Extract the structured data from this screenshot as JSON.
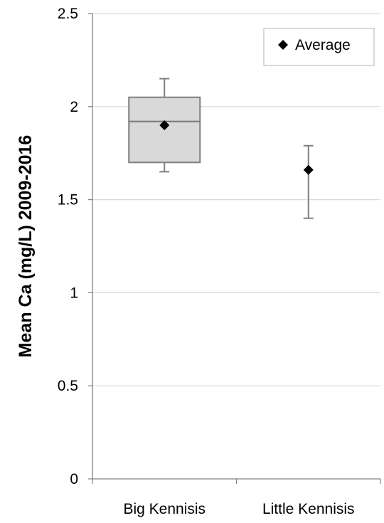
{
  "chart_data": {
    "type": "box",
    "ylabel": "Mean Ca (mg/L)  2009-2016",
    "ylim": [
      0,
      2.5
    ],
    "yticks": [
      "0",
      "0.5",
      "1",
      "1.5",
      "2",
      "2.5"
    ],
    "grid": true,
    "legend_position": "top-right",
    "legend": [
      "Average"
    ],
    "categories": [
      "Big Kennisis",
      "Little Kennisis"
    ],
    "series": [
      {
        "category": "Big Kennisis",
        "min": 1.65,
        "q1": 1.7,
        "median": 1.92,
        "q3": 2.05,
        "max": 2.15,
        "average": 1.9,
        "box": true
      },
      {
        "category": "Little Kennisis",
        "min": 1.4,
        "max": 1.79,
        "average": 1.66,
        "box": false
      }
    ],
    "colors": {
      "box_fill": "#d9d9d9",
      "box_stroke": "#7f7f7f",
      "grid": "#d9d9d9",
      "axis": "#808080",
      "marker": "#000000"
    }
  }
}
